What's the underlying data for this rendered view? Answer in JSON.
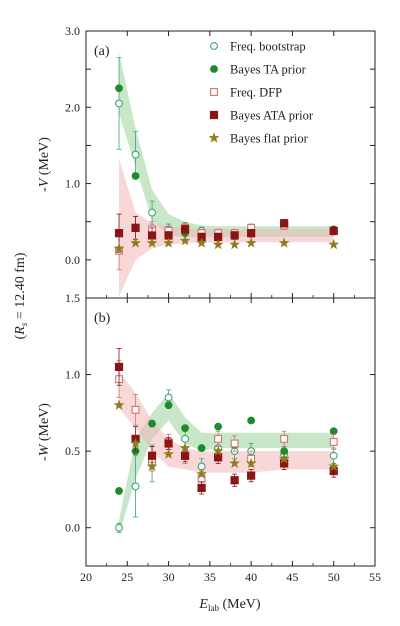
{
  "figure": {
    "shared_ylabel": "(R_s = 12.40 fm)",
    "shared_ylabel_parts": {
      "open": "(",
      "R": "R",
      "sub": "s",
      "rest": " = 12.40 fm)"
    },
    "xlabel_main": "E",
    "xlabel_sub": "lab",
    "xlabel_unit": " (MeV)"
  },
  "legend": {
    "entries": [
      {
        "label": "Freq. bootstrap",
        "marker": "circle-open",
        "color": "#3aa57a"
      },
      {
        "label": "Bayes TA prior",
        "marker": "circle-filled",
        "color": "#1f8a2e"
      },
      {
        "label": "Freq. DFP",
        "marker": "square-open",
        "color": "#d2736e"
      },
      {
        "label": "Bayes ATA prior",
        "marker": "square-filled",
        "color": "#8b1414"
      },
      {
        "label": "Bayes flat prior",
        "marker": "star",
        "color": "#8e7d1e"
      }
    ]
  },
  "chart_data": [
    {
      "type": "scatter",
      "panel_label": "(a)",
      "ylabel": "-V (MeV)",
      "ylabel_parts": {
        "prefix": "-",
        "var": "V",
        "unit": " (MeV)"
      },
      "xlim": [
        20,
        55
      ],
      "ylim": [
        -0.5,
        3.0
      ],
      "x_ticks": [
        20,
        25,
        30,
        35,
        40,
        45,
        50,
        55
      ],
      "y_ticks": [
        0.0,
        0.5,
        1.0,
        1.5,
        2.0,
        2.5,
        3.0
      ],
      "y_tick_labels": [
        "0.0",
        "",
        "1.0",
        "",
        "2.0",
        "",
        "3.0"
      ],
      "bands": [
        {
          "name": "green",
          "color": "#9bd49b",
          "x": [
            24,
            26,
            28,
            30,
            32,
            34,
            36,
            38,
            40,
            44,
            50
          ],
          "upper": [
            2.72,
            1.72,
            0.92,
            0.6,
            0.5,
            0.45,
            0.44,
            0.44,
            0.44,
            0.44,
            0.44
          ],
          "lower": [
            1.92,
            1.22,
            0.52,
            0.32,
            0.3,
            0.3,
            0.3,
            0.3,
            0.3,
            0.3,
            0.3
          ]
        },
        {
          "name": "red",
          "color": "#f0b7b7",
          "x": [
            24,
            26,
            28,
            30,
            32,
            34,
            36,
            38,
            40,
            44,
            50
          ],
          "upper": [
            1.32,
            0.62,
            0.48,
            0.44,
            0.42,
            0.4,
            0.4,
            0.4,
            0.4,
            0.4,
            0.4
          ],
          "lower": [
            -0.48,
            0.0,
            0.15,
            0.2,
            0.22,
            0.23,
            0.23,
            0.23,
            0.23,
            0.23,
            0.23
          ]
        }
      ],
      "series": [
        {
          "name": "Freq. bootstrap",
          "marker": "circle-open",
          "color": "#3aa57a",
          "x": [
            24,
            26,
            28,
            30,
            32,
            34,
            36,
            38,
            40,
            44,
            50
          ],
          "y": [
            2.05,
            1.38,
            0.62,
            0.4,
            0.42,
            0.38,
            0.35,
            0.32,
            0.38,
            0.45,
            0.38
          ],
          "err": [
            0.6,
            0.3,
            0.15,
            0.07,
            0.07,
            0.05,
            0.05,
            0.05,
            0.05,
            0.05,
            0.05
          ]
        },
        {
          "name": "Bayes TA prior",
          "marker": "circle-filled",
          "color": "#1f8a2e",
          "x": [
            24,
            26,
            28,
            30,
            32,
            34,
            36,
            38,
            40,
            44,
            50
          ],
          "y": [
            2.25,
            1.1,
            0.38,
            0.32,
            0.35,
            0.3,
            0.33,
            0.35,
            0.35,
            0.48,
            0.4
          ],
          "err": [
            0,
            0,
            0,
            0,
            0,
            0,
            0,
            0,
            0,
            0,
            0
          ]
        },
        {
          "name": "Freq. DFP",
          "marker": "square-open",
          "color": "#d2736e",
          "x": [
            24,
            26,
            28,
            30,
            32,
            34,
            36,
            38,
            40,
            44,
            50
          ],
          "y": [
            0.12,
            0.42,
            0.4,
            0.38,
            0.42,
            0.35,
            0.35,
            0.35,
            0.42,
            0.45,
            0.38
          ],
          "err": [
            0.25,
            0.15,
            0.1,
            0.06,
            0.06,
            0.05,
            0.05,
            0.05,
            0.05,
            0.05,
            0.05
          ]
        },
        {
          "name": "Bayes ATA prior",
          "marker": "square-filled",
          "color": "#8b1414",
          "x": [
            24,
            26,
            28,
            30,
            32,
            34,
            36,
            38,
            40,
            44,
            50
          ],
          "y": [
            0.35,
            0.42,
            0.32,
            0.32,
            0.4,
            0.3,
            0.3,
            0.32,
            0.35,
            0.48,
            0.38
          ],
          "err": [
            0.25,
            0.15,
            0.1,
            0.05,
            0.05,
            0.05,
            0.05,
            0.05,
            0.05,
            0.05,
            0.05
          ]
        },
        {
          "name": "Bayes flat prior",
          "marker": "star",
          "color": "#8e7d1e",
          "x": [
            24,
            26,
            28,
            30,
            32,
            34,
            36,
            38,
            40,
            44,
            50
          ],
          "y": [
            0.15,
            0.22,
            0.22,
            0.22,
            0.25,
            0.22,
            0.2,
            0.2,
            0.22,
            0.22,
            0.2
          ],
          "err": [
            0,
            0,
            0,
            0,
            0,
            0,
            0,
            0,
            0,
            0,
            0
          ]
        }
      ]
    },
    {
      "type": "scatter",
      "panel_label": "(b)",
      "ylabel": "-W (MeV)",
      "ylabel_parts": {
        "prefix": "-",
        "var": "W",
        "unit": " (MeV)"
      },
      "xlim": [
        20,
        55
      ],
      "ylim": [
        -0.25,
        1.5
      ],
      "x_ticks": [
        20,
        25,
        30,
        35,
        40,
        45,
        50,
        55
      ],
      "x_tick_labels": [
        "20",
        "25",
        "30",
        "35",
        "40",
        "45",
        "50",
        "55"
      ],
      "y_ticks": [
        0.0,
        0.5,
        1.0,
        1.5
      ],
      "y_tick_labels": [
        "0.0",
        "0.5",
        "1.0",
        "1.5"
      ],
      "bands": [
        {
          "name": "green",
          "color": "#9bd49b",
          "x": [
            24,
            26,
            28,
            30,
            32,
            34,
            36,
            38,
            40,
            44,
            50
          ],
          "upper": [
            0.05,
            0.58,
            0.75,
            0.88,
            0.72,
            0.62,
            0.62,
            0.62,
            0.62,
            0.62,
            0.62
          ],
          "lower": [
            -0.05,
            0.32,
            0.58,
            0.7,
            0.55,
            0.5,
            0.52,
            0.52,
            0.52,
            0.52,
            0.52
          ]
        },
        {
          "name": "red",
          "color": "#f0b7b7",
          "x": [
            24,
            26,
            28,
            30,
            32,
            34,
            36,
            38,
            40,
            44,
            50
          ],
          "upper": [
            1.02,
            0.88,
            0.7,
            0.58,
            0.52,
            0.5,
            0.5,
            0.5,
            0.5,
            0.5,
            0.5
          ],
          "lower": [
            0.78,
            0.65,
            0.5,
            0.4,
            0.38,
            0.36,
            0.36,
            0.36,
            0.36,
            0.38,
            0.38
          ]
        }
      ],
      "series": [
        {
          "name": "Freq. bootstrap",
          "marker": "circle-open",
          "color": "#3aa57a",
          "x": [
            24,
            26,
            28,
            30,
            32,
            34,
            36,
            38,
            40,
            44,
            50
          ],
          "y": [
            0.0,
            0.27,
            0.42,
            0.85,
            0.58,
            0.4,
            0.52,
            0.5,
            0.5,
            0.48,
            0.47
          ],
          "err": [
            0.03,
            0.2,
            0.12,
            0.05,
            0.05,
            0.05,
            0.05,
            0.05,
            0.05,
            0.05,
            0.05
          ]
        },
        {
          "name": "Bayes TA prior",
          "marker": "circle-filled",
          "color": "#1f8a2e",
          "x": [
            24,
            26,
            28,
            30,
            32,
            34,
            36,
            38,
            40,
            44,
            50
          ],
          "y": [
            0.24,
            0.5,
            0.68,
            0.8,
            0.65,
            0.52,
            0.66,
            0.54,
            0.7,
            0.5,
            0.63
          ],
          "err": [
            0,
            0,
            0,
            0,
            0,
            0,
            0,
            0,
            0,
            0,
            0
          ]
        },
        {
          "name": "Freq. DFP",
          "marker": "square-open",
          "color": "#d2736e",
          "x": [
            24,
            26,
            28,
            30,
            32,
            34,
            36,
            38,
            40,
            44,
            50
          ],
          "y": [
            0.97,
            0.77,
            0.45,
            0.56,
            0.47,
            0.32,
            0.58,
            0.55,
            0.45,
            0.58,
            0.56
          ],
          "err": [
            0.12,
            0.1,
            0.08,
            0.05,
            0.05,
            0.05,
            0.05,
            0.05,
            0.05,
            0.05,
            0.05
          ]
        },
        {
          "name": "Bayes ATA prior",
          "marker": "square-filled",
          "color": "#8b1414",
          "x": [
            24,
            26,
            28,
            30,
            32,
            34,
            36,
            38,
            40,
            44,
            50
          ],
          "y": [
            1.05,
            0.58,
            0.47,
            0.55,
            0.47,
            0.26,
            0.46,
            0.31,
            0.34,
            0.42,
            0.37
          ],
          "err": [
            0.12,
            0.08,
            0.06,
            0.04,
            0.04,
            0.04,
            0.04,
            0.04,
            0.04,
            0.04,
            0.04
          ]
        },
        {
          "name": "Bayes flat prior",
          "marker": "star",
          "color": "#8e7d1e",
          "x": [
            24,
            26,
            28,
            30,
            32,
            34,
            36,
            38,
            40,
            44,
            50
          ],
          "y": [
            0.8,
            0.55,
            0.4,
            0.48,
            0.52,
            0.35,
            0.5,
            0.42,
            0.42,
            0.45,
            0.4
          ],
          "err": [
            0,
            0,
            0,
            0,
            0,
            0,
            0,
            0,
            0,
            0,
            0
          ]
        }
      ]
    }
  ]
}
